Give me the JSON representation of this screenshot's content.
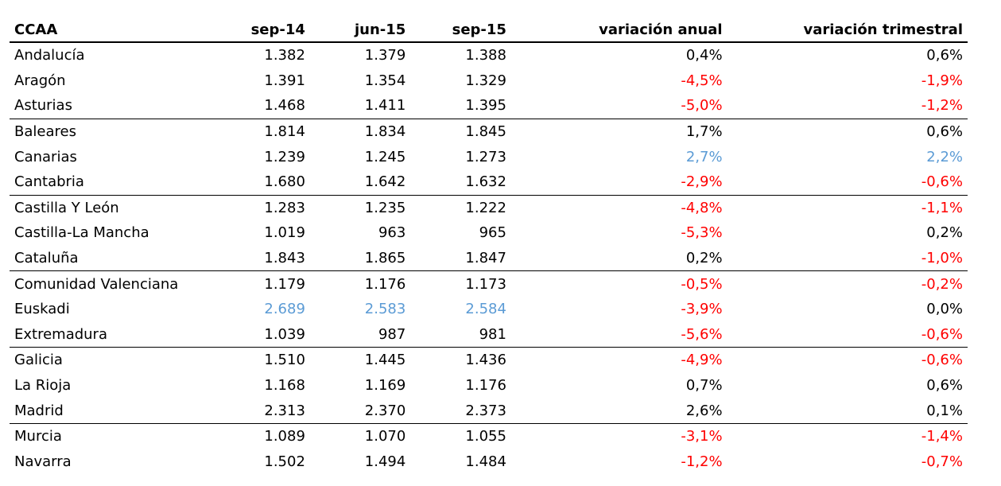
{
  "headers": [
    "CCAA",
    "sep-14",
    "jun-15",
    "sep-15",
    "variación anual",
    "variación trimestral"
  ],
  "colors": {
    "negative": "#ff0000",
    "highlight": "#5b9bd5",
    "default": "#000000"
  },
  "rows": [
    {
      "name": "Andalucía",
      "sep14": "1.382",
      "jun15": "1.379",
      "sep15": "1.388",
      "anual": "0,4%",
      "trim": "0,6%"
    },
    {
      "name": "Aragón",
      "sep14": "1.391",
      "jun15": "1.354",
      "sep15": "1.329",
      "anual": "-4,5%",
      "trim": "-1,9%"
    },
    {
      "name": "Asturias",
      "sep14": "1.468",
      "jun15": "1.411",
      "sep15": "1.395",
      "anual": "-5,0%",
      "trim": "-1,2%"
    },
    {
      "name": "Baleares",
      "sep14": "1.814",
      "jun15": "1.834",
      "sep15": "1.845",
      "anual": "1,7%",
      "trim": "0,6%"
    },
    {
      "name": "Canarias",
      "sep14": "1.239",
      "jun15": "1.245",
      "sep15": "1.273",
      "anual": "2,7%",
      "trim": "2,2%"
    },
    {
      "name": "Cantabria",
      "sep14": "1.680",
      "jun15": "1.642",
      "sep15": "1.632",
      "anual": "-2,9%",
      "trim": "-0,6%"
    },
    {
      "name": "Castilla Y León",
      "sep14": "1.283",
      "jun15": "1.235",
      "sep15": "1.222",
      "anual": "-4,8%",
      "trim": "-1,1%"
    },
    {
      "name": "Castilla-La Mancha",
      "sep14": "1.019",
      "jun15": "963",
      "sep15": "965",
      "anual": "-5,3%",
      "trim": "0,2%"
    },
    {
      "name": "Cataluña",
      "sep14": "1.843",
      "jun15": "1.865",
      "sep15": "1.847",
      "anual": "0,2%",
      "trim": "-1,0%"
    },
    {
      "name": "Comunidad Valenciana",
      "sep14": "1.179",
      "jun15": "1.176",
      "sep15": "1.173",
      "anual": "-0,5%",
      "trim": "-0,2%"
    },
    {
      "name": "Euskadi",
      "sep14": "2.689",
      "jun15": "2.583",
      "sep15": "2.584",
      "anual": "-3,9%",
      "trim": "0,0%"
    },
    {
      "name": "Extremadura",
      "sep14": "1.039",
      "jun15": "987",
      "sep15": "981",
      "anual": "-5,6%",
      "trim": "-0,6%"
    },
    {
      "name": "Galicia",
      "sep14": "1.510",
      "jun15": "1.445",
      "sep15": "1.436",
      "anual": "-4,9%",
      "trim": "-0,6%"
    },
    {
      "name": "La Rioja",
      "sep14": "1.168",
      "jun15": "1.169",
      "sep15": "1.176",
      "anual": "0,7%",
      "trim": "0,6%"
    },
    {
      "name": "Madrid",
      "sep14": "2.313",
      "jun15": "2.370",
      "sep15": "2.373",
      "anual": "2,6%",
      "trim": "0,1%"
    },
    {
      "name": "Murcia",
      "sep14": "1.089",
      "jun15": "1.070",
      "sep15": "1.055",
      "anual": "-3,1%",
      "trim": "-1,4%"
    },
    {
      "name": "Navarra",
      "sep14": "1.502",
      "jun15": "1.494",
      "sep15": "1.484",
      "anual": "-1,2%",
      "trim": "-0,7%"
    }
  ]
}
